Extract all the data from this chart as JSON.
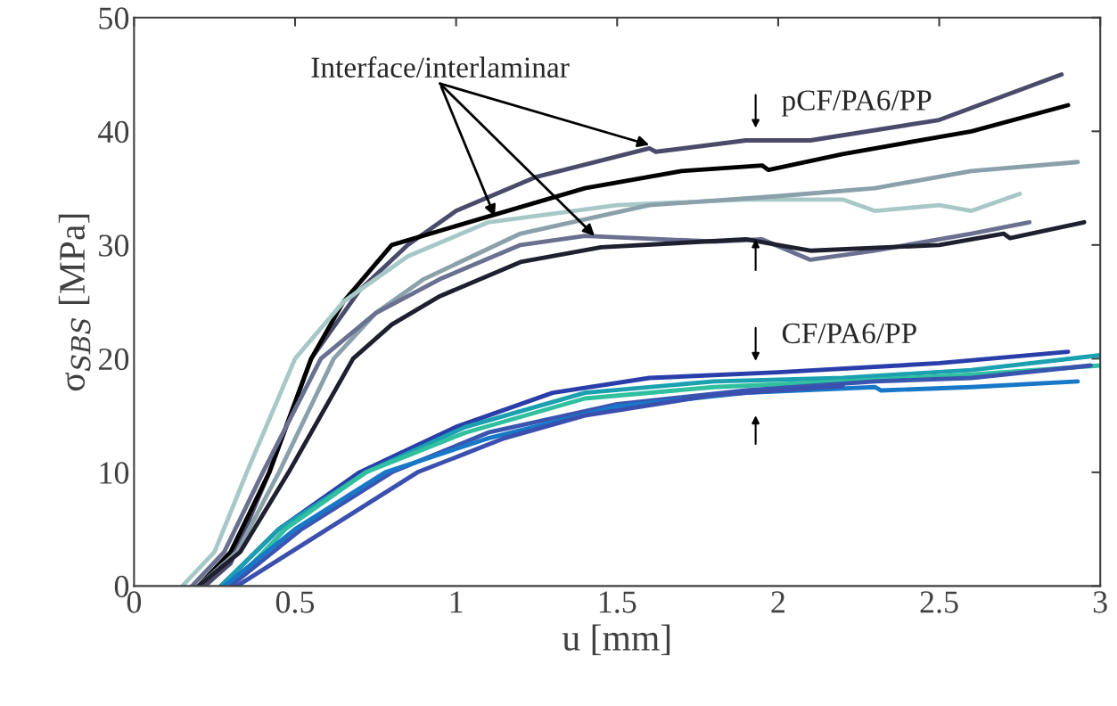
{
  "chart_data": {
    "type": "line",
    "xlabel": "u [mm]",
    "ylabel": "σ$_{SBS}$ [MPa]",
    "xlim": [
      0,
      3
    ],
    "ylim": [
      0,
      50
    ],
    "xticks": [
      0,
      0.5,
      1,
      1.5,
      2,
      2.5,
      3
    ],
    "yticks": [
      0,
      10,
      20,
      30,
      40,
      50
    ],
    "grid": false,
    "legend": false,
    "marker": "none",
    "line_style": "solid",
    "series": [
      {
        "color": "#4a4a6a",
        "x": [
          0.22,
          0.3,
          0.42,
          0.55,
          0.7,
          0.85,
          1.0,
          1.25,
          1.6,
          1.62,
          1.9,
          2.1,
          2.5,
          2.88
        ],
        "values": [
          0,
          2,
          10,
          20,
          26,
          30,
          33,
          36,
          38.5,
          38.2,
          39.2,
          39.2,
          41,
          45
        ]
      },
      {
        "color": "#000000",
        "x": [
          0.2,
          0.3,
          0.42,
          0.55,
          0.65,
          0.8,
          1.1,
          1.4,
          1.7,
          1.95,
          1.97,
          2.2,
          2.6,
          2.9
        ],
        "values": [
          0,
          3,
          10,
          20,
          25,
          30,
          32.5,
          35,
          36.5,
          37,
          36.6,
          38,
          40,
          42.3
        ]
      },
      {
        "color": "#a8c8c8",
        "x": [
          0.15,
          0.25,
          0.35,
          0.5,
          0.65,
          0.85,
          1.1,
          1.5,
          1.9,
          2.2,
          2.3,
          2.5,
          2.6,
          2.75
        ],
        "values": [
          0,
          3,
          10,
          20,
          25,
          29,
          32,
          33.5,
          34,
          34,
          33,
          33.5,
          33,
          34.5
        ]
      },
      {
        "color": "#8aa0aa",
        "x": [
          0.2,
          0.32,
          0.45,
          0.62,
          0.75,
          0.9,
          1.2,
          1.6,
          2.0,
          2.3,
          2.6,
          2.93
        ],
        "values": [
          0,
          3,
          10,
          20,
          24,
          27,
          31,
          33.5,
          34.3,
          35,
          36.5,
          37.3
        ]
      },
      {
        "color": "#6a7090",
        "x": [
          0.18,
          0.28,
          0.4,
          0.58,
          0.75,
          0.95,
          1.2,
          1.4,
          1.8,
          1.95,
          2.1,
          2.3,
          2.6,
          2.78
        ],
        "values": [
          0,
          3,
          10,
          20,
          24,
          27,
          30,
          30.8,
          30.3,
          30.5,
          28.7,
          29.5,
          31,
          32
        ]
      },
      {
        "color": "#1e2030",
        "x": [
          0.2,
          0.33,
          0.48,
          0.68,
          0.8,
          0.95,
          1.2,
          1.45,
          1.9,
          2.0,
          2.1,
          2.5,
          2.7,
          2.72,
          2.95
        ],
        "values": [
          0,
          3,
          10,
          20,
          23,
          25.5,
          28.5,
          29.8,
          30.5,
          30,
          29.5,
          30,
          31,
          30.6,
          32
        ]
      },
      {
        "color": "#2a3eaa",
        "x": [
          0.27,
          0.45,
          0.7,
          1.0,
          1.3,
          1.6,
          2.0,
          2.5,
          2.9
        ],
        "values": [
          0,
          5,
          10,
          14,
          17,
          18.3,
          18.8,
          19.6,
          20.6
        ]
      },
      {
        "color": "#1aa0b0",
        "x": [
          0.27,
          0.45,
          0.72,
          1.03,
          1.4,
          1.8,
          2.2,
          2.6,
          3.0
        ],
        "values": [
          0,
          5,
          10,
          14,
          17,
          18,
          18.3,
          19,
          20.3
        ]
      },
      {
        "color": "#30c0a0",
        "x": [
          0.3,
          0.47,
          0.72,
          1.03,
          1.4,
          1.8,
          2.2,
          2.6,
          3.0
        ],
        "values": [
          0,
          5,
          10,
          13.5,
          16.5,
          17.5,
          18,
          18.6,
          19.4
        ]
      },
      {
        "color": "#3a55b0",
        "x": [
          0.3,
          0.52,
          0.8,
          1.1,
          1.5,
          1.9,
          2.3,
          2.6,
          2.97
        ],
        "values": [
          0,
          5,
          10,
          13.5,
          16,
          17.2,
          18,
          18.3,
          19.4
        ]
      },
      {
        "color": "#1878c8",
        "x": [
          0.28,
          0.5,
          0.78,
          1.1,
          1.5,
          1.9,
          2.3,
          2.32,
          2.6,
          2.93
        ],
        "values": [
          0,
          5,
          10,
          13,
          15.8,
          17,
          17.5,
          17.2,
          17.5,
          18
        ]
      },
      {
        "color": "#3b4fae",
        "x": [
          0.32,
          0.6,
          0.88,
          1.15,
          1.4,
          1.8,
          2.2
        ],
        "values": [
          0,
          5,
          10,
          13,
          15,
          16.8,
          17.6
        ]
      }
    ],
    "annotations": [
      {
        "text": "Interface/interlaminar",
        "x": 1.12,
        "y": 32.5
      },
      "pCF/PA6/PP",
      "CF/PA6/PP"
    ]
  }
}
